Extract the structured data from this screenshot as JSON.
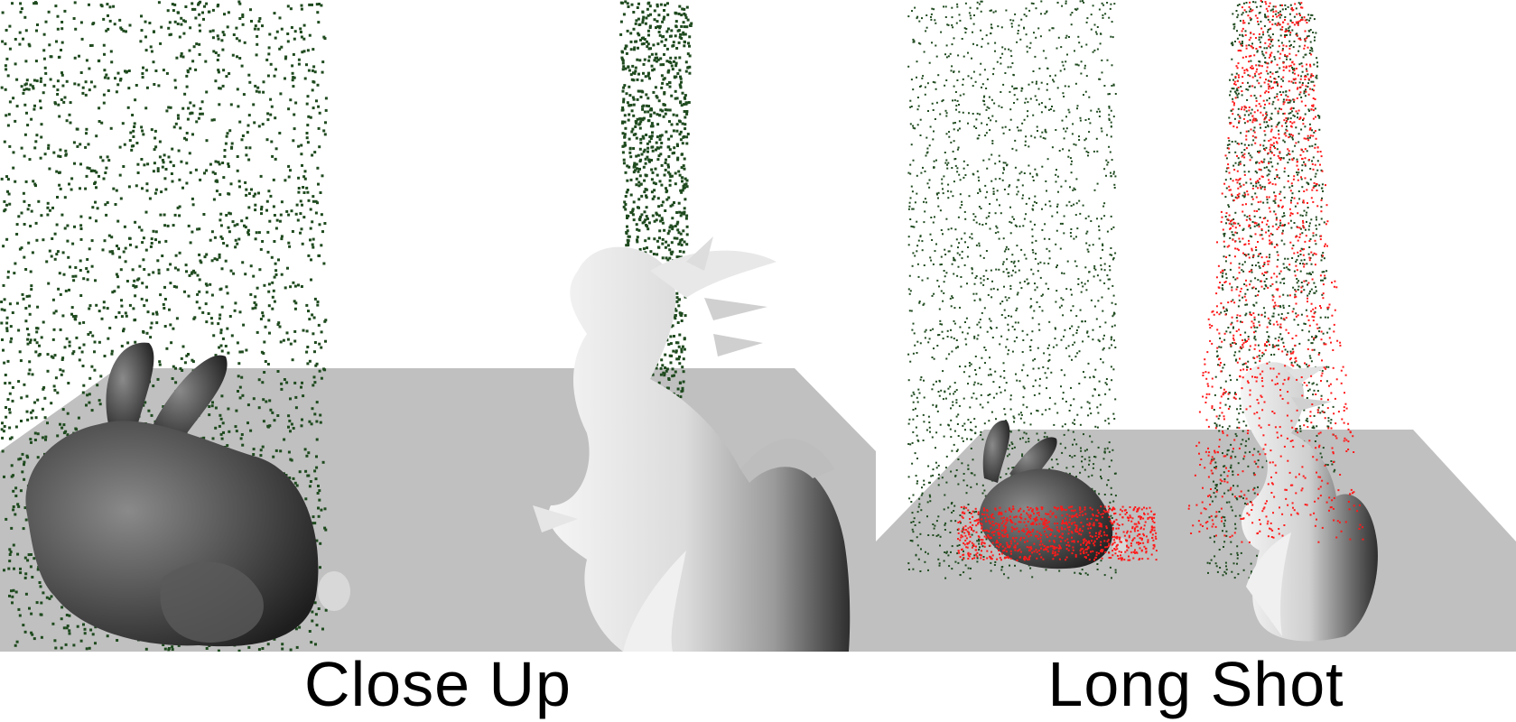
{
  "captions": {
    "left": "Close Up",
    "right": "Long Shot"
  },
  "colors": {
    "background": "#ffffff",
    "floor": "#c0c0c0",
    "particle_green": "#1f4a1f",
    "particle_red": "#ff1a1a",
    "model_light": "#ececec",
    "model_dark": "#3a3a3a"
  },
  "scenes": {
    "left": {
      "objects": [
        "bunny",
        "dragon"
      ],
      "particle_colors": [
        "green"
      ]
    },
    "right": {
      "objects": [
        "bunny",
        "dragon"
      ],
      "particle_colors": [
        "green",
        "red"
      ]
    }
  }
}
